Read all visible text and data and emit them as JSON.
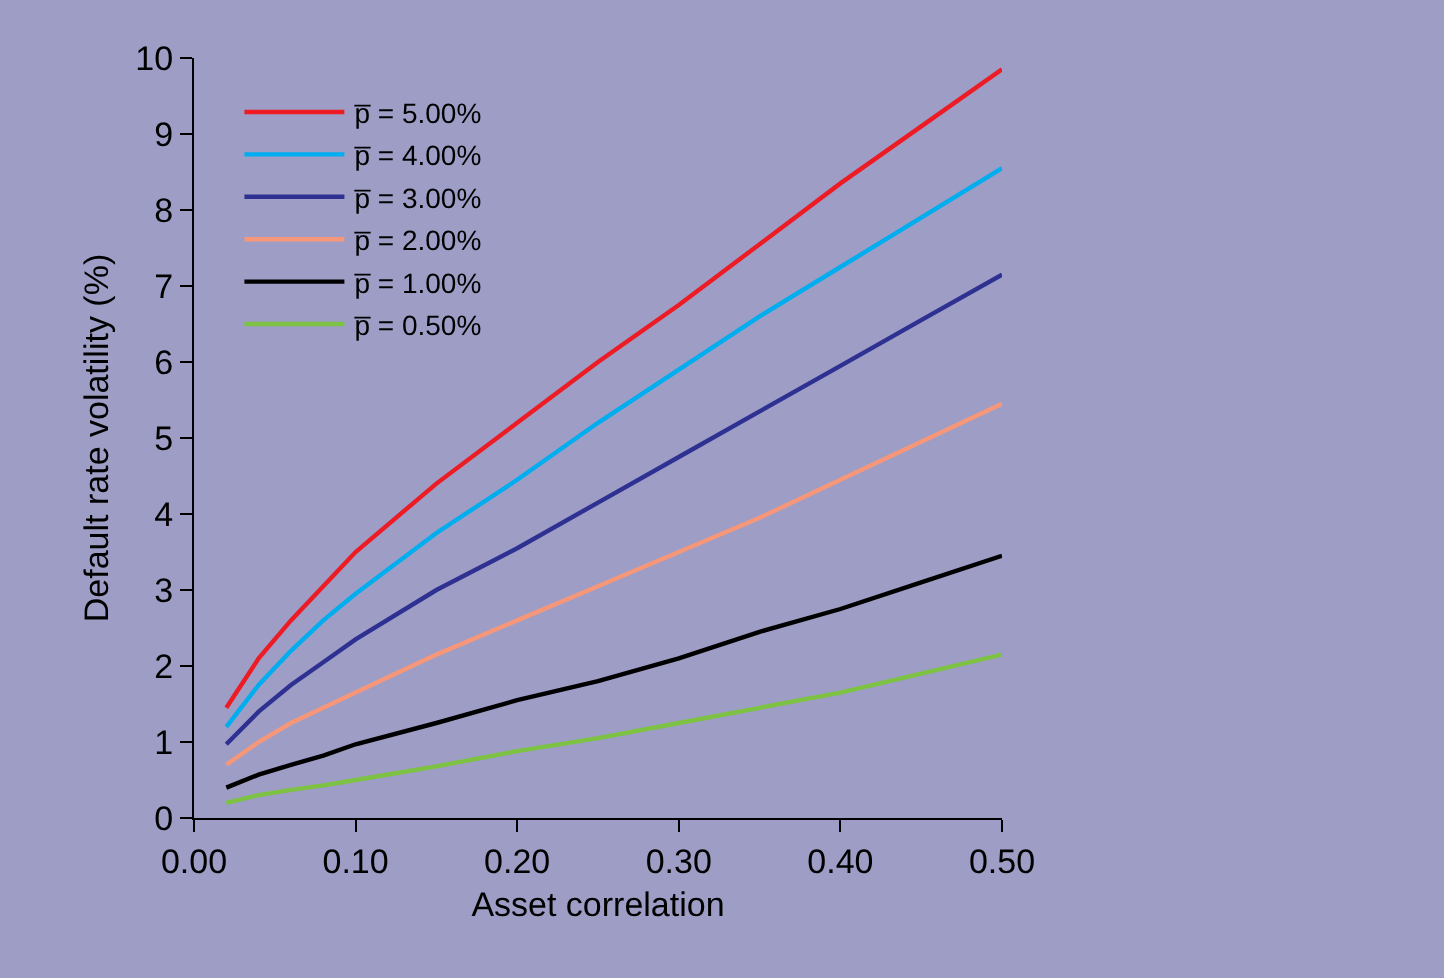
{
  "chart_data": {
    "type": "line",
    "xlabel": "Asset correlation",
    "ylabel": "Default rate volatility (%)",
    "x": [
      0.02,
      0.04,
      0.06,
      0.08,
      0.1,
      0.15,
      0.2,
      0.25,
      0.3,
      0.35,
      0.4,
      0.45,
      0.5
    ],
    "series": [
      {
        "name": "p̅ = 5.00%",
        "color": "#ed1c24",
        "values": [
          1.45,
          2.1,
          2.6,
          3.05,
          3.5,
          4.4,
          5.2,
          6.0,
          6.75,
          7.55,
          8.35,
          9.1,
          9.85
        ]
      },
      {
        "name": "p̅ = 4.00%",
        "color": "#00aeef",
        "values": [
          1.2,
          1.75,
          2.2,
          2.6,
          2.95,
          3.75,
          4.45,
          5.2,
          5.9,
          6.6,
          7.25,
          7.9,
          8.55
        ]
      },
      {
        "name": "p̅ = 3.00%",
        "color": "#2e3192",
        "values": [
          0.97,
          1.4,
          1.75,
          2.05,
          2.35,
          3.0,
          3.55,
          4.15,
          4.75,
          5.35,
          5.95,
          6.55,
          7.15
        ]
      },
      {
        "name": "p̅ = 2.00%",
        "color": "#f7977a",
        "values": [
          0.7,
          1.0,
          1.25,
          1.45,
          1.65,
          2.15,
          2.6,
          3.05,
          3.5,
          3.95,
          4.45,
          4.95,
          5.45
        ]
      },
      {
        "name": "p̅ = 1.00%",
        "color": "#000000",
        "values": [
          0.4,
          0.57,
          0.7,
          0.82,
          0.97,
          1.25,
          1.55,
          1.8,
          2.1,
          2.45,
          2.75,
          3.1,
          3.45
        ]
      },
      {
        "name": "p̅ = 0.50%",
        "color": "#7dc242",
        "values": [
          0.2,
          0.3,
          0.37,
          0.43,
          0.5,
          0.68,
          0.88,
          1.05,
          1.25,
          1.45,
          1.65,
          1.9,
          2.15
        ]
      }
    ],
    "xlim": [
      0,
      0.5
    ],
    "ylim": [
      0,
      10
    ],
    "xticks": [
      {
        "value": 0,
        "label": "0.00"
      },
      {
        "value": 0.1,
        "label": "0.10"
      },
      {
        "value": 0.2,
        "label": "0.20"
      },
      {
        "value": 0.3,
        "label": "0.30"
      },
      {
        "value": 0.4,
        "label": "0.40"
      },
      {
        "value": 0.5,
        "label": "0.50"
      }
    ],
    "yticks": [
      0,
      1,
      2,
      3,
      4,
      5,
      6,
      7,
      8,
      9,
      10
    ],
    "grid": false,
    "legend": "top left",
    "marker": "none",
    "line_style": "solid"
  }
}
